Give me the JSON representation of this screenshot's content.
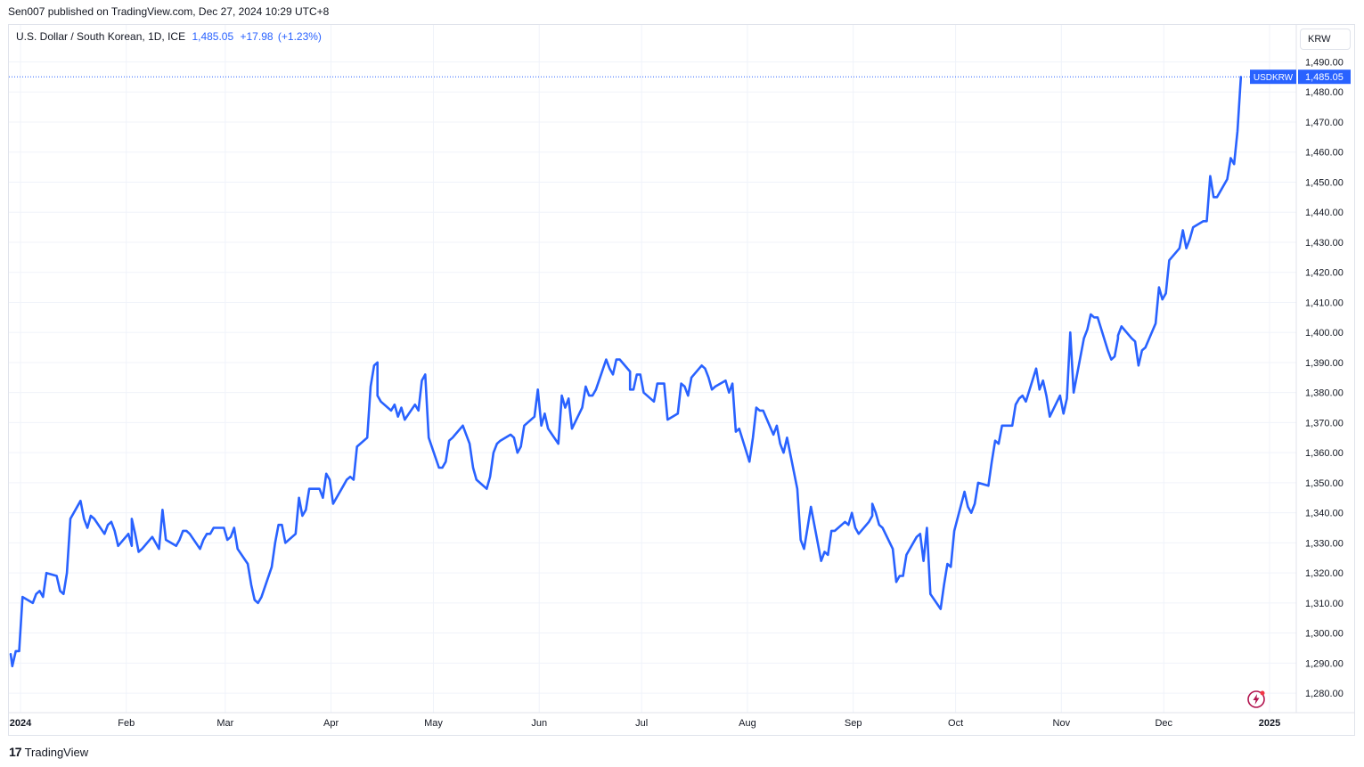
{
  "header": {
    "publish_text": "Sen007 published on TradingView.com, Dec 27, 2024 10:29 UTC+8"
  },
  "legend": {
    "title": "U.S. Dollar / South Korean, 1D, ICE",
    "last": "1,485.05",
    "change": "+17.98",
    "change_pct": "(+1.23%)"
  },
  "currency_button": {
    "label": "KRW"
  },
  "price_tag": {
    "symbol": "USDKRW",
    "value": "1,485.05"
  },
  "footer": {
    "brand": "TradingView"
  },
  "colors": {
    "line": "#2962ff",
    "grid": "#f0f3fa",
    "border": "#e0e3eb",
    "text": "#131722"
  },
  "icons": {
    "footer_logo": "tradingview-logo-icon",
    "flash": "lightning-icon"
  },
  "chart_data": {
    "type": "line",
    "title": "U.S. Dollar / South Korean, 1D, ICE",
    "series": [
      {
        "name": "USDKRW",
        "x_start": "2024-01-01",
        "x_end": "2024-12-27",
        "values": [
          1293,
          1289,
          1294,
          1294,
          1312,
          1310,
          1313,
          1314,
          1312,
          1320,
          1319,
          1314,
          1313,
          1320,
          1338,
          1344,
          1338,
          1335,
          1339,
          1338,
          1333,
          1336,
          1337,
          1334,
          1329,
          1333,
          1329,
          1338,
          1333,
          1327,
          1328,
          1332,
          1330,
          1328,
          1341,
          1331,
          1329,
          1331,
          1334,
          1334,
          1333,
          1328,
          1331,
          1333,
          1333,
          1335,
          1335,
          1331,
          1332,
          1335,
          1328,
          1323,
          1316,
          1311,
          1310,
          1312,
          1322,
          1330,
          1336,
          1336,
          1330,
          1333,
          1345,
          1339,
          1341,
          1348,
          1348,
          1345,
          1353,
          1351,
          1343,
          1349,
          1351,
          1352,
          1351,
          1362,
          1365,
          1382,
          1389,
          1390,
          1379,
          1377,
          1374,
          1376,
          1372,
          1375,
          1371,
          1376,
          1374,
          1384,
          1386,
          1365,
          1355,
          1355,
          1357,
          1364,
          1365,
          1369,
          1366,
          1363,
          1355,
          1351,
          1348,
          1352,
          1360,
          1363,
          1364,
          1366,
          1365,
          1360,
          1362,
          1369,
          1372,
          1381,
          1369,
          1373,
          1368,
          1363,
          1379,
          1375,
          1378,
          1368,
          1375,
          1382,
          1379,
          1379,
          1381,
          1391,
          1388,
          1386,
          1391,
          1391,
          1387,
          1381,
          1381,
          1386,
          1386,
          1380,
          1377,
          1383,
          1383,
          1383,
          1371,
          1373,
          1383,
          1382,
          1379,
          1385,
          1389,
          1388,
          1385,
          1381,
          1382,
          1384,
          1380,
          1383,
          1367,
          1368,
          1357,
          1365,
          1375,
          1374,
          1374,
          1366,
          1369,
          1363,
          1360,
          1365,
          1348,
          1331,
          1328,
          1335,
          1342,
          1324,
          1327,
          1326,
          1334,
          1334,
          1337,
          1336,
          1340,
          1335,
          1333,
          1337,
          1339,
          1343,
          1340,
          1336,
          1335,
          1328,
          1317,
          1319,
          1319,
          1326,
          1332,
          1333,
          1324,
          1335,
          1313,
          1308,
          1316,
          1323,
          1322,
          1334,
          1347,
          1342,
          1340,
          1343,
          1350,
          1349,
          1357,
          1364,
          1363,
          1369,
          1369,
          1376,
          1378,
          1379,
          1377,
          1388,
          1381,
          1384,
          1379,
          1372,
          1379,
          1373,
          1378,
          1400,
          1380,
          1398,
          1401,
          1406,
          1405,
          1405,
          1394,
          1391,
          1392,
          1398,
          1399,
          1402,
          1398,
          1397,
          1389,
          1394,
          1395,
          1403,
          1415,
          1411,
          1413,
          1424,
          1428,
          1434,
          1428,
          1431,
          1435,
          1437,
          1437,
          1452,
          1445,
          1445,
          1451,
          1458,
          1456,
          1467,
          1485
        ]
      }
    ],
    "x_tick_labels": [
      "2024",
      "Feb",
      "Mar",
      "Apr",
      "May",
      "Jun",
      "Jul",
      "Aug",
      "Sep",
      "Oct",
      "Nov",
      "Dec",
      "2025"
    ],
    "x_tick_dates": [
      "2024-01-01",
      "2024-02-01",
      "2024-03-01",
      "2024-04-01",
      "2024-05-01",
      "2024-06-01",
      "2024-07-01",
      "2024-08-01",
      "2024-09-01",
      "2024-10-01",
      "2024-11-01",
      "2024-12-01",
      "2025-01-01"
    ],
    "y_tick_labels": [
      "1,280.00",
      "1,290.00",
      "1,300.00",
      "1,310.00",
      "1,320.00",
      "1,330.00",
      "1,340.00",
      "1,350.00",
      "1,360.00",
      "1,370.00",
      "1,380.00",
      "1,390.00",
      "1,400.00",
      "1,410.00",
      "1,420.00",
      "1,430.00",
      "1,440.00",
      "1,450.00",
      "1,460.00",
      "1,470.00",
      "1,480.00",
      "1,490.00"
    ],
    "y_ticks": [
      1280,
      1290,
      1300,
      1310,
      1320,
      1330,
      1340,
      1350,
      1360,
      1370,
      1380,
      1390,
      1400,
      1410,
      1420,
      1430,
      1440,
      1450,
      1460,
      1470,
      1480,
      1490
    ],
    "ylim": [
      1275,
      1494
    ],
    "last_value": 1485.05,
    "grid": true,
    "axis_position": "right"
  }
}
